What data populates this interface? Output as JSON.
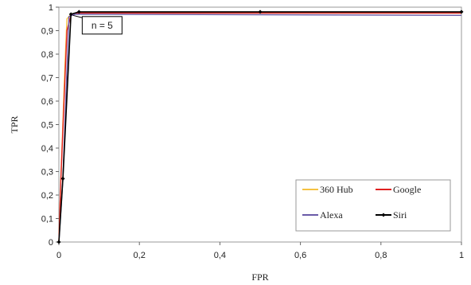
{
  "chart_data": {
    "type": "line",
    "title": "",
    "xlabel": "FPR",
    "ylabel": "TPR",
    "xlim": [
      0,
      1
    ],
    "ylim": [
      0,
      1
    ],
    "x_ticks": [
      "0",
      "0,2",
      "0,4",
      "0,6",
      "0,8",
      "1"
    ],
    "y_ticks": [
      "0",
      "0,1",
      "0,2",
      "0,3",
      "0,4",
      "0,5",
      "0,6",
      "0,7",
      "0,8",
      "0,9",
      "1"
    ],
    "grid": false,
    "legend_position": "bottom-right",
    "annotation": "n = 5",
    "series": [
      {
        "name": "360 Hub",
        "color": "#f5c242",
        "marker": "none",
        "points": [
          [
            0,
            0
          ],
          [
            0.005,
            0.27
          ],
          [
            0.015,
            0.75
          ],
          [
            0.02,
            0.95
          ],
          [
            0.03,
            0.97
          ],
          [
            0.05,
            0.975
          ],
          [
            1,
            0.975
          ]
        ]
      },
      {
        "name": "Google",
        "color": "#e02020",
        "marker": "none",
        "points": [
          [
            0,
            0
          ],
          [
            0.005,
            0.27
          ],
          [
            0.02,
            0.9
          ],
          [
            0.03,
            0.965
          ],
          [
            0.05,
            0.975
          ],
          [
            1,
            0.975
          ]
        ]
      },
      {
        "name": "Alexa",
        "color": "#6a5aa8",
        "marker": "none",
        "points": [
          [
            0,
            0
          ],
          [
            0.01,
            0.27
          ],
          [
            0.025,
            0.96
          ],
          [
            0.04,
            0.97
          ],
          [
            1,
            0.965
          ]
        ]
      },
      {
        "name": "Siri",
        "color": "#000000",
        "marker": "diamond",
        "points": [
          [
            0,
            0
          ],
          [
            0.01,
            0.27
          ],
          [
            0.03,
            0.97
          ],
          [
            0.05,
            0.98
          ],
          [
            0.5,
            0.98
          ],
          [
            1,
            0.98
          ]
        ]
      }
    ]
  }
}
